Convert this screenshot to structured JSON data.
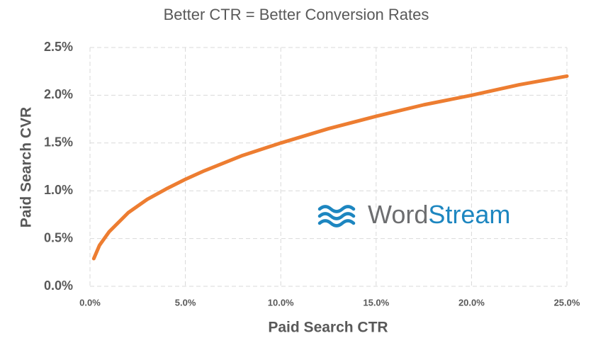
{
  "chart_data": {
    "type": "line",
    "title": "Better CTR = Better Conversion Rates",
    "x_label": "Paid Search CTR",
    "y_label": "Paid Search CVR",
    "x": [
      0.2,
      0.5,
      1,
      2,
      3,
      4,
      5,
      6,
      8,
      10,
      12.5,
      15,
      17.5,
      20,
      22.5,
      25
    ],
    "series": [
      {
        "name": "Paid Search CVR",
        "color": "#ed7d31",
        "values": [
          0.29,
          0.43,
          0.57,
          0.77,
          0.91,
          1.02,
          1.12,
          1.21,
          1.37,
          1.5,
          1.65,
          1.78,
          1.9,
          2.0,
          2.11,
          2.2
        ]
      }
    ],
    "xlim": [
      0,
      25
    ],
    "xticks": [
      {
        "value": 0,
        "label": "0.0%"
      },
      {
        "value": 5,
        "label": "5.0%"
      },
      {
        "value": 10,
        "label": "10.0%"
      },
      {
        "value": 15,
        "label": "15.0%"
      },
      {
        "value": 20,
        "label": "20.0%"
      },
      {
        "value": 25,
        "label": "25.0%"
      }
    ],
    "ylim": [
      0,
      2.5
    ],
    "yticks": [
      {
        "value": 0,
        "label": "0.0%"
      },
      {
        "value": 0.5,
        "label": "0.5%"
      },
      {
        "value": 1,
        "label": "1.0%"
      },
      {
        "value": 1.5,
        "label": "1.5%"
      },
      {
        "value": 2,
        "label": "2.0%"
      },
      {
        "value": 2.5,
        "label": "2.5%"
      }
    ],
    "grid": true,
    "watermark": [
      "Word",
      "Stream"
    ]
  }
}
